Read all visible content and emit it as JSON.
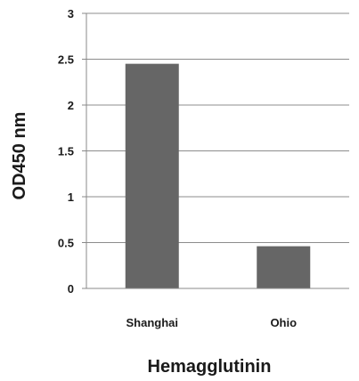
{
  "chart_data": {
    "type": "bar",
    "title": "",
    "xlabel": "Hemagglutinin",
    "ylabel": "OD450 nm",
    "categories": [
      "Shanghai",
      "Ohio"
    ],
    "values": [
      2.45,
      0.46
    ],
    "ylim": [
      0,
      3
    ],
    "yticks": [
      "0",
      "0.5",
      "1",
      "1.5",
      "2",
      "2.5",
      "3"
    ],
    "grid": true,
    "legend": "none",
    "bar_color": "#666666"
  }
}
